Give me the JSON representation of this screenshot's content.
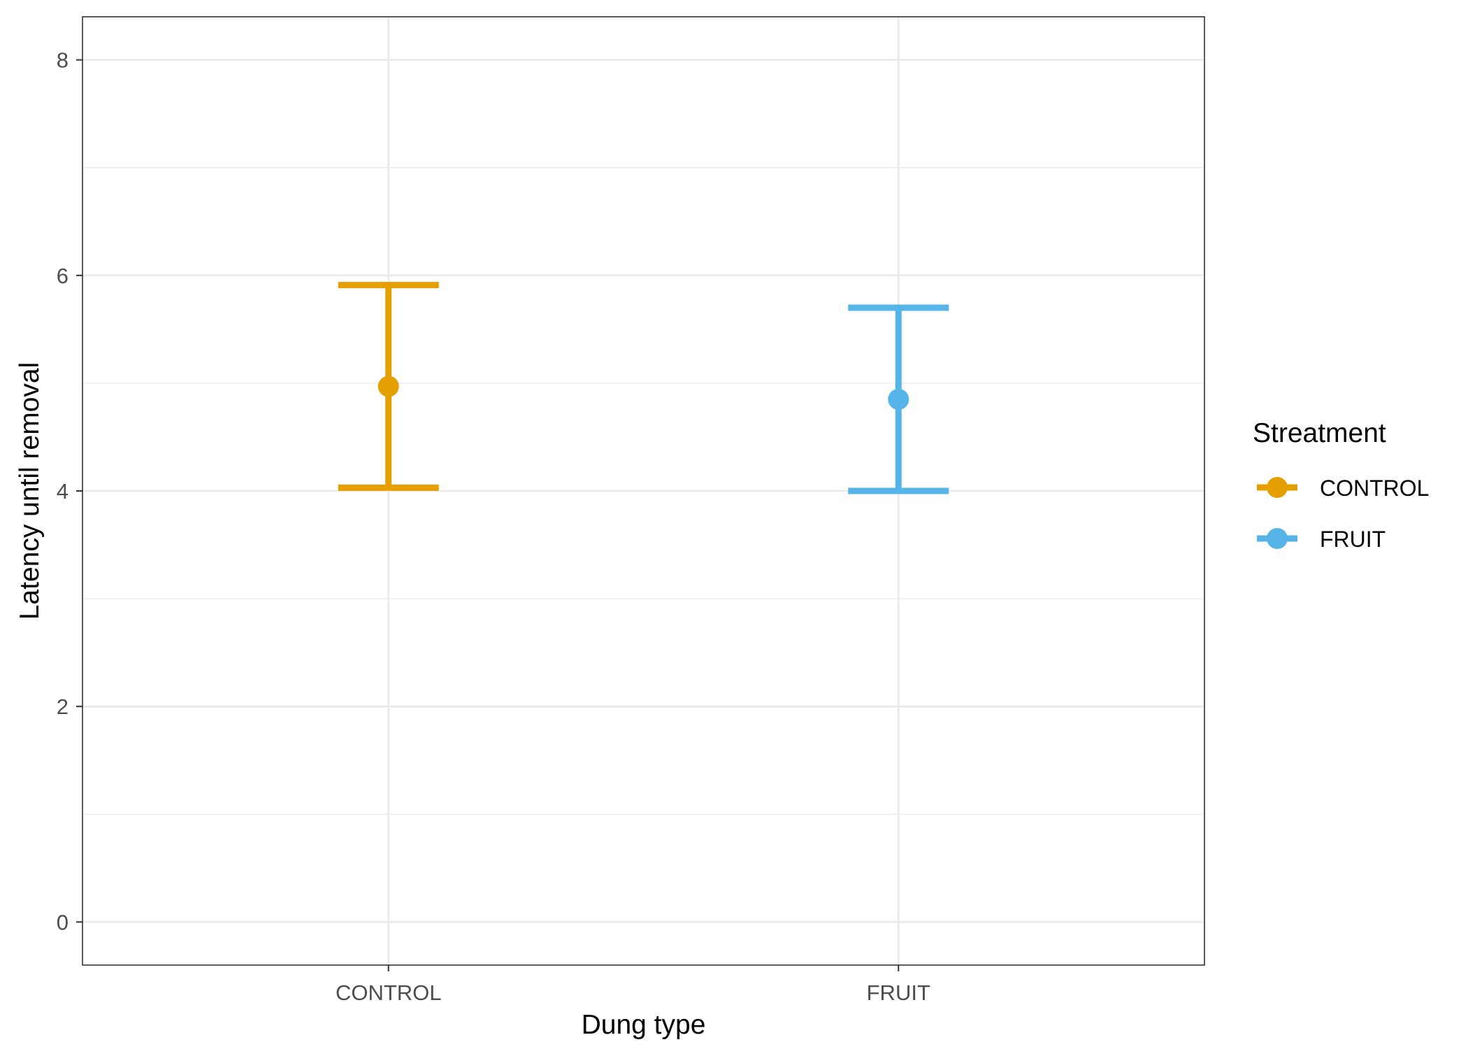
{
  "chart_data": {
    "type": "errorbar",
    "xlabel": "Dung type",
    "ylabel": "Latency until removal",
    "categories": [
      "CONTROL",
      "FRUIT"
    ],
    "ylim": [
      -0.4,
      8.4
    ],
    "yticks": [
      0,
      2,
      4,
      6,
      8
    ],
    "grid": true,
    "legend": {
      "title": "Streatment",
      "placement": "right",
      "entries": [
        "CONTROL",
        "FRUIT"
      ]
    },
    "series": [
      {
        "name": "CONTROL",
        "category": "CONTROL",
        "mean": 4.97,
        "lower": 4.03,
        "upper": 5.91,
        "color": "#E69F00"
      },
      {
        "name": "FRUIT",
        "category": "FRUIT",
        "mean": 4.85,
        "lower": 4.0,
        "upper": 5.7,
        "color": "#56B4E9"
      }
    ]
  }
}
